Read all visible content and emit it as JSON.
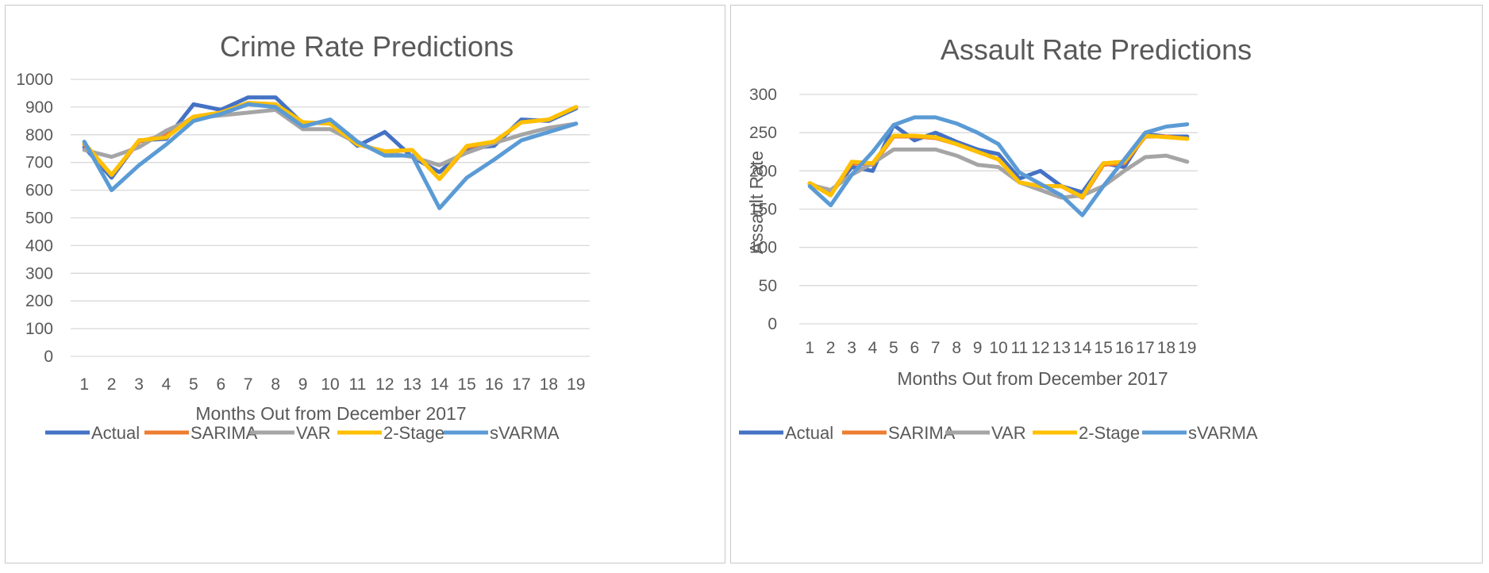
{
  "colors": {
    "Actual": "#4472c4",
    "SARIMA": "#ed7d31",
    "VAR": "#a5a5a5",
    "2-Stage": "#ffc000",
    "sVARMA": "#5b9bd5"
  },
  "chart_data": [
    {
      "type": "line",
      "title": "Crime Rate Predictions",
      "xlabel": "Months Out from December  2017",
      "ylabel": "",
      "ylim": [
        0,
        1000
      ],
      "yticks": [
        0,
        100,
        200,
        300,
        400,
        500,
        600,
        700,
        800,
        900,
        1000
      ],
      "x": [
        1,
        2,
        3,
        4,
        5,
        6,
        7,
        8,
        9,
        10,
        11,
        12,
        13,
        14,
        15,
        16,
        17,
        18,
        19
      ],
      "legend": "bottom",
      "grid": true,
      "series": [
        {
          "name": "Actual",
          "values": [
            755,
            645,
            780,
            785,
            910,
            890,
            935,
            935,
            840,
            845,
            760,
            810,
            720,
            665,
            750,
            760,
            855,
            850,
            895
          ]
        },
        {
          "name": "SARIMA",
          "values": [
            765,
            655,
            775,
            800,
            865,
            880,
            915,
            910,
            845,
            840,
            765,
            740,
            745,
            640,
            755,
            775,
            845,
            855,
            900
          ]
        },
        {
          "name": "VAR",
          "values": [
            745,
            720,
            755,
            815,
            860,
            870,
            880,
            890,
            820,
            820,
            770,
            735,
            720,
            690,
            735,
            770,
            800,
            825,
            840
          ]
        },
        {
          "name": "2-Stage",
          "values": [
            770,
            655,
            780,
            790,
            865,
            880,
            915,
            910,
            845,
            840,
            765,
            740,
            745,
            640,
            760,
            775,
            845,
            855,
            900
          ]
        },
        {
          "name": "sVARMA",
          "values": [
            775,
            600,
            690,
            765,
            850,
            875,
            910,
            900,
            830,
            855,
            775,
            725,
            725,
            535,
            645,
            710,
            780,
            810,
            840
          ]
        }
      ]
    },
    {
      "type": "line",
      "title": "Assault Rate Predictions",
      "xlabel": "Months Out from December  2017",
      "ylabel": "Assault Rate",
      "ylim": [
        0,
        300
      ],
      "yticks": [
        0,
        50,
        100,
        150,
        200,
        250,
        300
      ],
      "x": [
        1,
        2,
        3,
        4,
        5,
        6,
        7,
        8,
        9,
        10,
        11,
        12,
        13,
        14,
        15,
        16,
        17,
        18,
        19
      ],
      "legend": "bottom",
      "grid": true,
      "series": [
        {
          "name": "Actual",
          "values": [
            183,
            170,
            205,
            200,
            260,
            240,
            250,
            238,
            228,
            222,
            190,
            200,
            180,
            172,
            210,
            205,
            248,
            245,
            245
          ]
        },
        {
          "name": "SARIMA",
          "values": [
            184,
            170,
            210,
            208,
            245,
            245,
            243,
            235,
            225,
            215,
            185,
            180,
            180,
            165,
            208,
            210,
            245,
            245,
            242
          ]
        },
        {
          "name": "VAR",
          "values": [
            182,
            175,
            195,
            210,
            228,
            228,
            228,
            220,
            208,
            205,
            185,
            175,
            165,
            168,
            180,
            200,
            218,
            220,
            212
          ]
        },
        {
          "name": "2-Stage",
          "values": [
            184,
            168,
            212,
            210,
            246,
            246,
            244,
            235,
            225,
            215,
            185,
            180,
            180,
            166,
            210,
            212,
            246,
            244,
            242
          ]
        },
        {
          "name": "sVARMA",
          "values": [
            180,
            155,
            195,
            225,
            260,
            270,
            270,
            262,
            250,
            235,
            198,
            183,
            168,
            142,
            180,
            215,
            250,
            258,
            261
          ]
        }
      ]
    }
  ]
}
